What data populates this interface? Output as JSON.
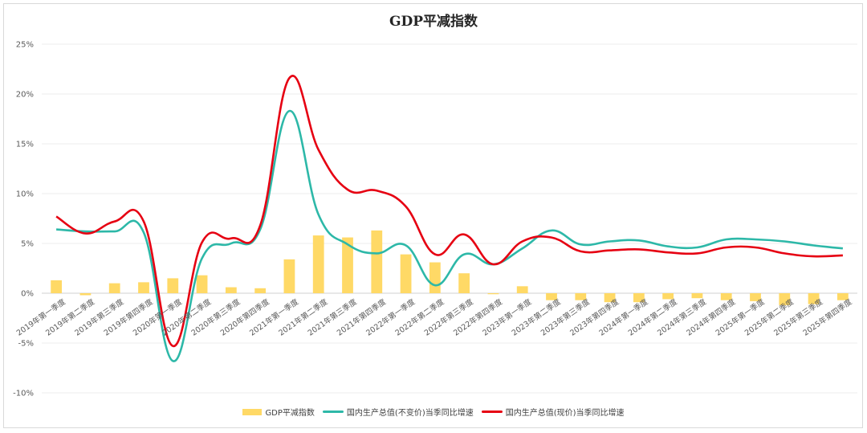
{
  "chart_data": {
    "type": "bar+line",
    "title": "GDP平减指数",
    "categories": [
      "2019年第一季度",
      "2019年第二季度",
      "2019年第三季度",
      "2019年第四季度",
      "2020年第一季度",
      "2020年第二季度",
      "2020年第三季度",
      "2020年第四季度",
      "2021年第一季度",
      "2021年第二季度",
      "2021年第三季度",
      "2021年第四季度",
      "2022年第一季度",
      "2022年第二季度",
      "2022年第三季度",
      "2022年第四季度",
      "2023年第一季度",
      "2023年第二季度",
      "2023年第三季度",
      "2023年第四季度",
      "2024年第一季度",
      "2024年第二季度",
      "2024年第三季度",
      "2024年第四季度",
      "2025年第一季度",
      "2025年第二季度",
      "2025年第三季度",
      "2025年第四季度"
    ],
    "yticks": [
      "-10%",
      "-5%",
      "0%",
      "5%",
      "10%",
      "15%",
      "20%",
      "25%"
    ],
    "ylim": [
      -10,
      25
    ],
    "series": [
      {
        "name": "GDP平减指数",
        "kind": "bar",
        "color": "#ffd966",
        "values": [
          1.3,
          -0.2,
          1.0,
          1.1,
          1.5,
          1.8,
          0.6,
          0.5,
          3.4,
          5.8,
          5.6,
          6.3,
          3.9,
          3.1,
          2.0,
          -0.1,
          0.7,
          -0.7,
          -0.7,
          -0.9,
          -0.9,
          -0.6,
          -0.5,
          -0.7,
          -0.8,
          -1.2,
          -1.1,
          -0.7
        ]
      },
      {
        "name": "国内生产总值(不变价)当季同比增速",
        "kind": "line",
        "color": "#2db8a8",
        "values": [
          6.4,
          6.2,
          6.2,
          6.1,
          -6.8,
          3.5,
          5.0,
          6.4,
          18.3,
          7.9,
          4.9,
          4.0,
          4.8,
          0.8,
          3.9,
          2.9,
          4.5,
          6.3,
          4.9,
          5.2,
          5.3,
          4.7,
          4.6,
          5.4,
          5.4,
          5.2,
          4.8,
          4.5
        ]
      },
      {
        "name": "国内生产总值(现价)当季同比增速",
        "kind": "line",
        "color": "#e60012",
        "values": [
          7.7,
          6.0,
          7.2,
          7.2,
          -5.3,
          5.1,
          5.5,
          6.8,
          21.6,
          14.4,
          10.4,
          10.3,
          8.7,
          3.9,
          5.9,
          2.9,
          5.2,
          5.6,
          4.2,
          4.3,
          4.4,
          4.1,
          4.0,
          4.6,
          4.6,
          4.0,
          3.7,
          3.8
        ]
      }
    ]
  }
}
